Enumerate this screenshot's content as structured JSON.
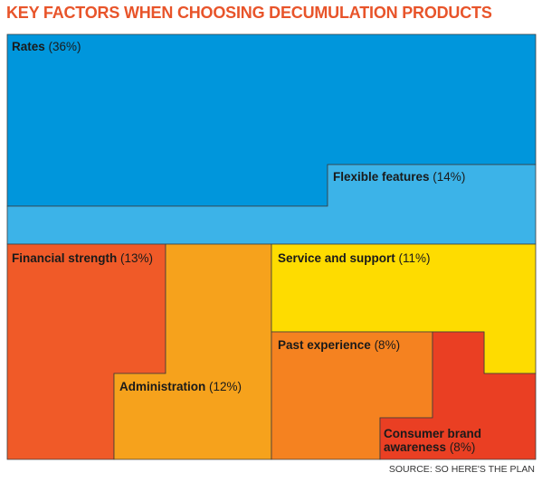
{
  "title": "KEY FACTORS WHEN CHOOSING DECUMULATION PRODUCTS",
  "source": "SOURCE: SO HERE'S THE PLAN",
  "chart_data": {
    "type": "treemap",
    "items": [
      {
        "name": "Rates",
        "value": "(36%)",
        "percent": 36,
        "color": "#0096dc"
      },
      {
        "name": "Flexible features",
        "value": "(14%)",
        "percent": 14,
        "color": "#3cb3e8"
      },
      {
        "name": "Financial strength",
        "value": "(13%)",
        "percent": 13,
        "color": "#f05a28"
      },
      {
        "name": "Administration",
        "value": "(12%)",
        "percent": 12,
        "color": "#f6a21c"
      },
      {
        "name": "Service and support",
        "value": "(11%)",
        "percent": 11,
        "color": "#fedc00"
      },
      {
        "name": "Past experience",
        "value": "(8%)",
        "percent": 8,
        "color": "#f58220"
      },
      {
        "name": "Consumer brand awareness",
        "value": "(8%)",
        "percent": 8,
        "color": "#ea3f23"
      }
    ]
  }
}
